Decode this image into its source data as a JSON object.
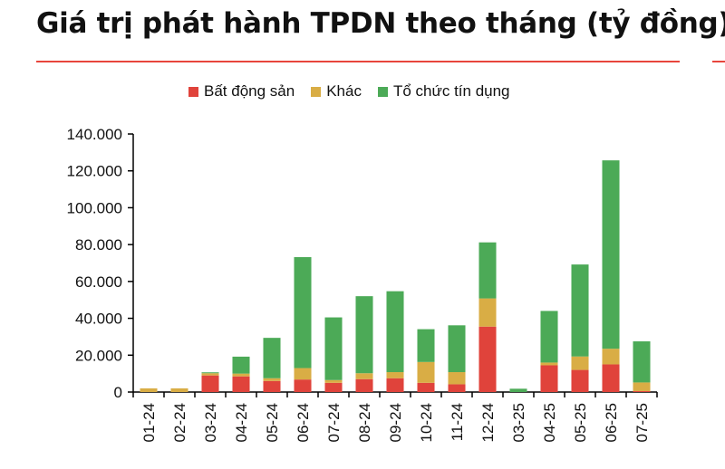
{
  "title": "Giá trị phát hành TPDN theo tháng (tỷ đồng)",
  "colors": {
    "accent_rule": "#e8453c"
  },
  "chart_data": {
    "type": "bar",
    "stacked": true,
    "categories": [
      "01-24",
      "02-24",
      "03-24",
      "04-24",
      "05-24",
      "06-24",
      "07-24",
      "08-24",
      "09-24",
      "10-24",
      "11-24",
      "12-24",
      "03-25",
      "04-25",
      "05-25",
      "06-25",
      "07-25"
    ],
    "series": [
      {
        "name": "Bất động sản",
        "color": "#e0433b",
        "values": [
          0,
          0,
          9000,
          8500,
          6000,
          6800,
          5000,
          7000,
          7500,
          5000,
          4200,
          35500,
          0,
          14500,
          12000,
          15000,
          500
        ]
      },
      {
        "name": "Khác",
        "color": "#d9ad45",
        "values": [
          2000,
          2000,
          1200,
          1500,
          1500,
          6200,
          1500,
          3200,
          3300,
          11300,
          6600,
          15300,
          0,
          1500,
          7300,
          8500,
          4700
        ]
      },
      {
        "name": "Tổ chức tín dụng",
        "color": "#4caa57",
        "values": [
          0,
          0,
          500,
          9200,
          21900,
          60200,
          34000,
          41800,
          43900,
          17800,
          25400,
          30400,
          1800,
          28000,
          49900,
          102200,
          22300
        ]
      }
    ],
    "ylim": [
      0,
      140000
    ],
    "yticks": [
      "0",
      "20.000",
      "40.000",
      "60.000",
      "80.000",
      "100.000",
      "120.000",
      "140.000"
    ],
    "ytick_values": [
      0,
      20000,
      40000,
      60000,
      80000,
      100000,
      120000,
      140000
    ],
    "legend_position": "top",
    "grid": false,
    "xlabel": "",
    "ylabel": ""
  }
}
